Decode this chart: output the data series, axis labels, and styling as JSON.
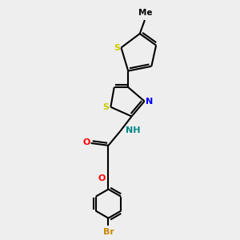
{
  "background_color": "#eeeeee",
  "atom_colors": {
    "S_thiophene": "#cccc00",
    "S_thiazole": "#cccc00",
    "N_thiazole": "#0000ff",
    "N_amide": "#008888",
    "O_carbonyl": "#ff0000",
    "O_ether": "#ff0000",
    "Br": "#cc8800",
    "C": "#000000",
    "Me": "#000000"
  },
  "figsize": [
    3.0,
    3.0
  ],
  "dpi": 100,
  "xlim": [
    0,
    10
  ],
  "ylim": [
    0,
    10
  ]
}
